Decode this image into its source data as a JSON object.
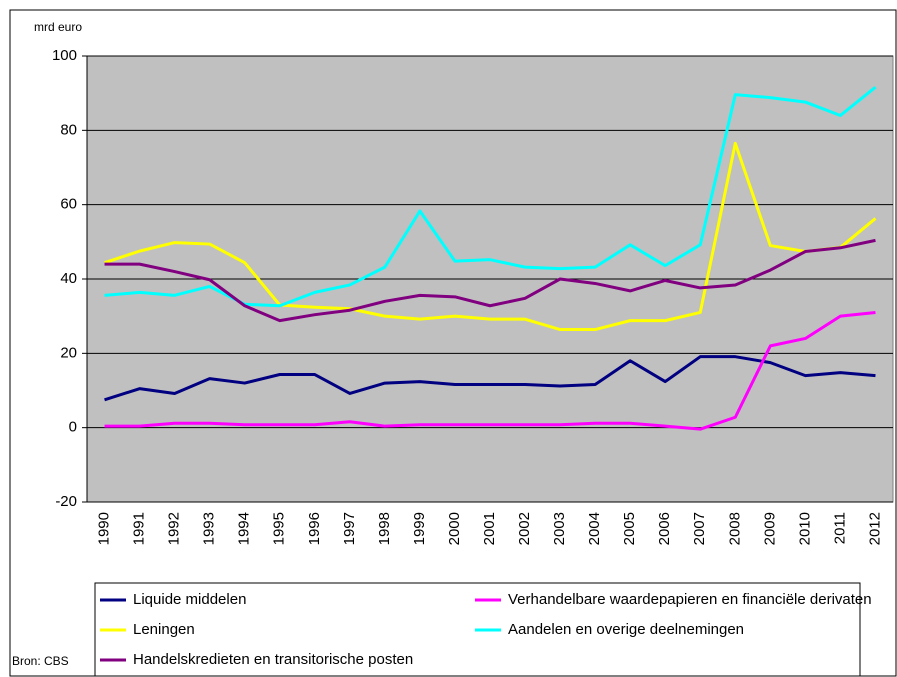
{
  "chart_data": {
    "type": "line",
    "y_label": "mrd euro",
    "source": "Bron: CBS",
    "categories": [
      "1990",
      "1991",
      "1992",
      "1993",
      "1994",
      "1995",
      "1996",
      "1997",
      "1998",
      "1999",
      "2000",
      "2001",
      "2002",
      "2003",
      "2004",
      "2005",
      "2006",
      "2007",
      "2008",
      "2009",
      "2010",
      "2011",
      "2012"
    ],
    "series": [
      {
        "name": "Liquide middelen",
        "color": "#000080",
        "values": [
          7.5,
          10.5,
          9.2,
          13.2,
          12,
          14.3,
          14.3,
          9.2,
          12,
          12.4,
          11.6,
          11.6,
          11.6,
          11.2,
          11.6,
          18,
          12.4,
          19.1,
          19.1,
          17.5,
          14,
          14.8,
          14
        ]
      },
      {
        "name": "Verhandelbare waardepapieren en financiële derivaten",
        "color": "#ff00ff",
        "values": [
          0.4,
          0.4,
          1.2,
          1.2,
          0.8,
          0.8,
          0.8,
          1.6,
          0.4,
          0.8,
          0.8,
          0.8,
          0.8,
          0.8,
          1.2,
          1.2,
          0.4,
          -0.4,
          2.8,
          22,
          24,
          30,
          31
        ]
      },
      {
        "name": "Leningen",
        "color": "#ffff00",
        "values": [
          44.4,
          47.5,
          49.8,
          49.4,
          44.4,
          33,
          32.4,
          32,
          30,
          29.2,
          30,
          29.2,
          29.2,
          26.4,
          26.4,
          28.8,
          28.8,
          31,
          76.5,
          49,
          47.4,
          48.5,
          56.3
        ]
      },
      {
        "name": "Aandelen en overige deelnemingen",
        "color": "#00ffff",
        "values": [
          35.6,
          36.4,
          35.6,
          38,
          33.2,
          32.8,
          36.4,
          38.4,
          43.2,
          58.3,
          44.8,
          45.2,
          43.2,
          42.8,
          43.2,
          49.2,
          43.6,
          49.2,
          89.6,
          88.8,
          87.6,
          84,
          91.6
        ]
      },
      {
        "name": "Handelskredieten en transitorische posten",
        "color": "#800080",
        "values": [
          44,
          44,
          42,
          39.8,
          32.8,
          28.8,
          30.4,
          31.6,
          34,
          35.6,
          35.2,
          32.8,
          34.8,
          40,
          38.8,
          36.8,
          39.6,
          37.6,
          38.4,
          42.4,
          47.4,
          48.4,
          50.4
        ]
      }
    ],
    "ylim": [
      -20,
      100
    ],
    "yticks": [
      -20,
      0,
      20,
      40,
      60,
      80,
      100
    ],
    "grid": true,
    "plot_background": "#c0c0c0"
  }
}
